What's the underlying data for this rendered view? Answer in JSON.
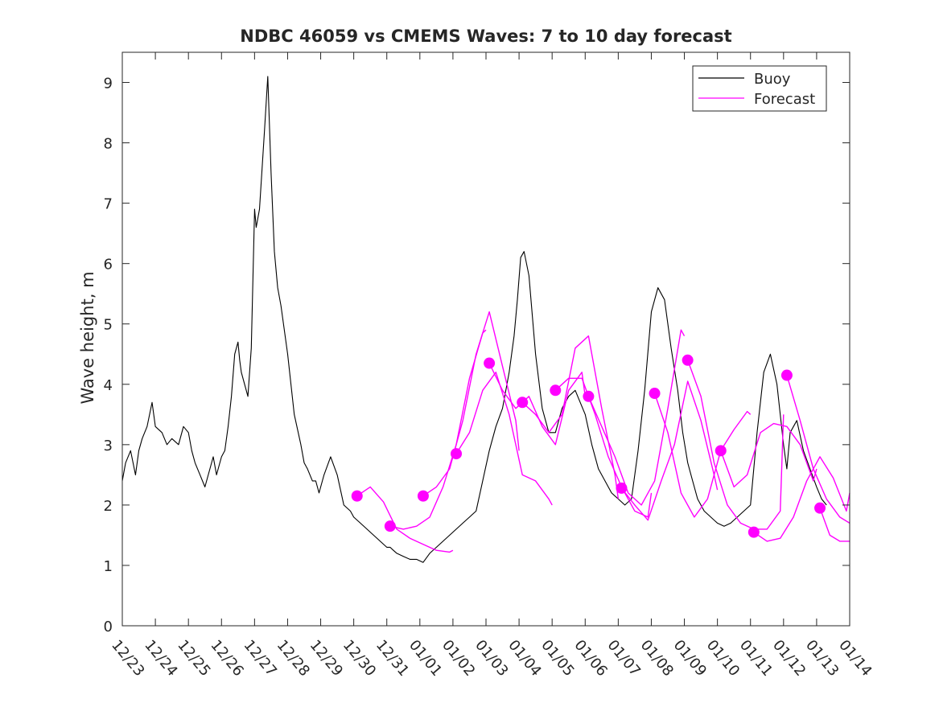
{
  "colors": {
    "buoy": "#000000",
    "forecast": "#ff00ff",
    "axis": "#262626",
    "background": "#ffffff"
  },
  "chart_data": {
    "type": "line",
    "title": "NDBC 46059 vs CMEMS Waves: 7 to 10 day forecast",
    "xlabel": "",
    "ylabel": "Wave height, m",
    "xlim": [
      0,
      22
    ],
    "ylim": [
      0,
      9.5
    ],
    "grid": false,
    "legend_position": "top-right",
    "x_tick_labels": [
      "12/23",
      "12/24",
      "12/25",
      "12/26",
      "12/27",
      "12/28",
      "12/29",
      "12/30",
      "12/31",
      "01/01",
      "01/02",
      "01/03",
      "01/04",
      "01/05",
      "01/06",
      "01/07",
      "01/08",
      "01/09",
      "01/10",
      "01/11",
      "01/12",
      "01/13",
      "01/14"
    ],
    "y_ticks": [
      0,
      1,
      2,
      3,
      4,
      5,
      6,
      7,
      8,
      9
    ],
    "buoy": {
      "name": "Buoy",
      "x": [
        0,
        0.1,
        0.25,
        0.4,
        0.5,
        0.6,
        0.75,
        0.9,
        1.0,
        1.2,
        1.35,
        1.5,
        1.7,
        1.85,
        2.0,
        2.1,
        2.2,
        2.35,
        2.5,
        2.65,
        2.75,
        2.85,
        3.0,
        3.1,
        3.2,
        3.3,
        3.4,
        3.5,
        3.55,
        3.6,
        3.7,
        3.8,
        3.9,
        4.0,
        4.05,
        4.15,
        4.3,
        4.4,
        4.5,
        4.6,
        4.7,
        4.8,
        5.0,
        5.2,
        5.4,
        5.5,
        5.6,
        5.75,
        5.85,
        5.95,
        6.1,
        6.3,
        6.5,
        6.7,
        6.9,
        7.0,
        7.2,
        7.4,
        7.6,
        7.8,
        8.0,
        8.1,
        8.2,
        8.3,
        8.5,
        8.7,
        8.9,
        9.1,
        9.3,
        9.5,
        9.7,
        9.9,
        10.1,
        10.3,
        10.5,
        10.7,
        10.9,
        11.1,
        11.3,
        11.5,
        11.7,
        11.85,
        11.95,
        12.05,
        12.15,
        12.3,
        12.5,
        12.7,
        12.9,
        13.1,
        13.3,
        13.5,
        13.7,
        13.85,
        14.0,
        14.2,
        14.4,
        14.6,
        14.8,
        15.0,
        15.2,
        15.4,
        15.6,
        15.8,
        16.0,
        16.2,
        16.4,
        16.6,
        16.8,
        16.95,
        17.1,
        17.25,
        17.4,
        17.6,
        17.8,
        18.0,
        18.2,
        18.4,
        18.6,
        18.8,
        19.0,
        19.2,
        19.4,
        19.6,
        19.8,
        20.0,
        20.1,
        20.2,
        20.4,
        20.6,
        20.8,
        21.0,
        21.15,
        21.3
      ],
      "y": [
        2.4,
        2.7,
        2.9,
        2.5,
        2.9,
        3.1,
        3.3,
        3.7,
        3.3,
        3.2,
        3.0,
        3.1,
        3.0,
        3.3,
        3.2,
        2.9,
        2.7,
        2.5,
        2.3,
        2.6,
        2.8,
        2.5,
        2.8,
        2.9,
        3.3,
        3.8,
        4.5,
        4.7,
        4.4,
        4.2,
        4.0,
        3.8,
        4.6,
        6.9,
        6.6,
        6.9,
        8.2,
        9.1,
        7.5,
        6.2,
        5.6,
        5.3,
        4.5,
        3.5,
        3.0,
        2.7,
        2.6,
        2.4,
        2.4,
        2.2,
        2.5,
        2.8,
        2.5,
        2.0,
        1.9,
        1.8,
        1.7,
        1.6,
        1.5,
        1.4,
        1.3,
        1.3,
        1.25,
        1.2,
        1.15,
        1.1,
        1.1,
        1.05,
        1.2,
        1.3,
        1.4,
        1.5,
        1.6,
        1.7,
        1.8,
        1.9,
        2.4,
        2.9,
        3.3,
        3.6,
        4.2,
        4.8,
        5.4,
        6.1,
        6.2,
        5.8,
        4.5,
        3.6,
        3.2,
        3.2,
        3.6,
        3.8,
        3.9,
        3.7,
        3.5,
        3.0,
        2.6,
        2.4,
        2.2,
        2.1,
        2.0,
        2.1,
        2.9,
        3.9,
        5.2,
        5.6,
        5.4,
        4.6,
        3.9,
        3.2,
        2.7,
        2.4,
        2.1,
        1.9,
        1.8,
        1.7,
        1.65,
        1.7,
        1.8,
        1.9,
        2.0,
        3.2,
        4.2,
        4.5,
        4.0,
        3.0,
        2.6,
        3.2,
        3.4,
        2.9,
        2.6,
        2.3,
        2.1,
        2.0
      ]
    },
    "forecast": {
      "name": "Forecast",
      "markers": [
        {
          "x": 7.1,
          "y": 2.15
        },
        {
          "x": 8.1,
          "y": 1.65
        },
        {
          "x": 9.1,
          "y": 2.15
        },
        {
          "x": 10.1,
          "y": 2.85
        },
        {
          "x": 11.1,
          "y": 4.35
        },
        {
          "x": 12.1,
          "y": 3.7
        },
        {
          "x": 13.1,
          "y": 3.9
        },
        {
          "x": 14.1,
          "y": 3.8
        },
        {
          "x": 15.1,
          "y": 2.28
        },
        {
          "x": 16.1,
          "y": 3.85
        },
        {
          "x": 17.1,
          "y": 4.4
        },
        {
          "x": 18.1,
          "y": 2.9
        },
        {
          "x": 19.1,
          "y": 1.55
        },
        {
          "x": 20.1,
          "y": 4.15
        },
        {
          "x": 21.1,
          "y": 1.95
        }
      ],
      "lines": [
        {
          "x": [
            7.1,
            7.5,
            7.9,
            8.3,
            8.7,
            9.1,
            9.5,
            9.9,
            10.0
          ],
          "y": [
            2.15,
            2.3,
            2.05,
            1.6,
            1.45,
            1.35,
            1.25,
            1.22,
            1.25
          ]
        },
        {
          "x": [
            8.1,
            8.5,
            8.9,
            9.3,
            9.7,
            10.1,
            10.5,
            10.9,
            11.0
          ],
          "y": [
            1.65,
            1.6,
            1.65,
            1.8,
            2.3,
            3.0,
            4.1,
            4.85,
            4.9
          ]
        },
        {
          "x": [
            9.1,
            9.5,
            9.9,
            10.3,
            10.7,
            11.1,
            11.5,
            11.9,
            12.0
          ],
          "y": [
            2.15,
            2.3,
            2.6,
            3.4,
            4.5,
            5.2,
            4.3,
            3.4,
            2.9
          ]
        },
        {
          "x": [
            10.1,
            10.5,
            10.9,
            11.3,
            11.7,
            12.1,
            12.5,
            12.9,
            13.0
          ],
          "y": [
            2.85,
            3.2,
            3.9,
            4.2,
            3.5,
            2.5,
            2.4,
            2.1,
            2.0
          ]
        },
        {
          "x": [
            11.1,
            11.5,
            11.9,
            12.3,
            12.7,
            13.1,
            13.5,
            13.9,
            14.0
          ],
          "y": [
            4.35,
            3.9,
            3.6,
            3.8,
            3.3,
            3.0,
            3.9,
            4.2,
            3.8
          ]
        },
        {
          "x": [
            12.1,
            12.5,
            12.9,
            13.3,
            13.7,
            14.1,
            14.5,
            14.9,
            15.0
          ],
          "y": [
            3.7,
            3.5,
            3.2,
            3.5,
            4.6,
            4.8,
            3.6,
            2.5,
            2.1
          ]
        },
        {
          "x": [
            13.1,
            13.5,
            13.9,
            14.3,
            14.7,
            15.1,
            15.5,
            15.9,
            16.0
          ],
          "y": [
            3.9,
            4.1,
            4.1,
            3.5,
            2.8,
            2.3,
            1.9,
            1.8,
            2.2
          ]
        },
        {
          "x": [
            14.1,
            14.5,
            14.9,
            15.3,
            15.7,
            16.1,
            16.5,
            16.9,
            17.0
          ],
          "y": [
            3.8,
            3.3,
            2.8,
            2.2,
            2.0,
            2.4,
            3.6,
            4.9,
            4.8
          ]
        },
        {
          "x": [
            15.1,
            15.5,
            15.9,
            16.3,
            16.7,
            17.1,
            17.5,
            17.9,
            18.0
          ],
          "y": [
            2.28,
            2.0,
            1.75,
            2.4,
            3.0,
            4.05,
            3.4,
            2.5,
            2.25
          ]
        },
        {
          "x": [
            16.1,
            16.5,
            16.9,
            17.3,
            17.7,
            18.1,
            18.5,
            18.9,
            19.0
          ],
          "y": [
            3.85,
            3.2,
            2.2,
            1.8,
            2.1,
            2.9,
            3.25,
            3.55,
            3.5
          ]
        },
        {
          "x": [
            17.1,
            17.5,
            17.9,
            18.3,
            18.7,
            19.1,
            19.5,
            19.9,
            20.0
          ],
          "y": [
            4.4,
            3.8,
            2.7,
            2.0,
            1.7,
            1.6,
            1.6,
            1.9,
            3.5
          ]
        },
        {
          "x": [
            18.1,
            18.5,
            18.9,
            19.3,
            19.7,
            20.1,
            20.5,
            20.9,
            21.0
          ],
          "y": [
            2.9,
            2.3,
            2.5,
            3.2,
            3.35,
            3.3,
            3.0,
            2.4,
            2.6
          ]
        },
        {
          "x": [
            19.1,
            19.5,
            19.9,
            20.3,
            20.7,
            21.1,
            21.5,
            21.9,
            22.0
          ],
          "y": [
            1.55,
            1.4,
            1.45,
            1.8,
            2.4,
            2.8,
            2.45,
            1.9,
            2.2
          ]
        },
        {
          "x": [
            20.1,
            20.5,
            20.9,
            21.3,
            21.7,
            22.0
          ],
          "y": [
            4.15,
            3.4,
            2.6,
            2.1,
            1.8,
            1.7
          ]
        },
        {
          "x": [
            21.1,
            21.4,
            21.7,
            22.0
          ],
          "y": [
            1.95,
            1.5,
            1.4,
            1.4
          ]
        }
      ]
    }
  }
}
